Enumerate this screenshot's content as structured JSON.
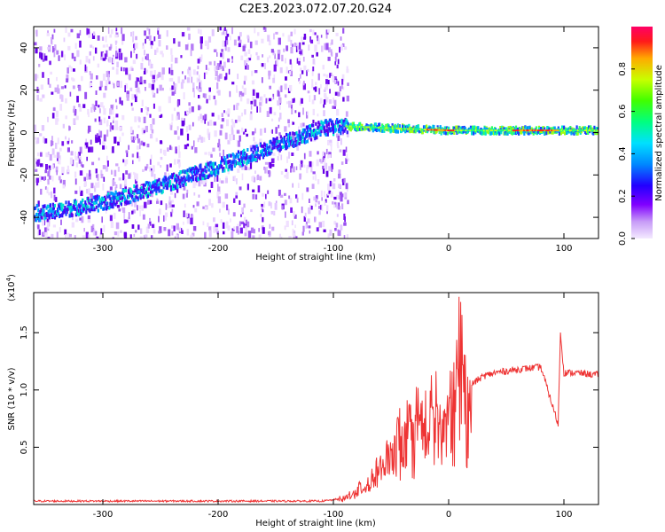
{
  "figure_title": "C2E3.2023.072.07.20.G24",
  "chart_data": [
    {
      "type": "heatmap",
      "title": "C2E3.2023.072.07.20.G24",
      "xlabel": "Height of straight line (km)",
      "ylabel": "Frequency (Hz)",
      "xlim": [
        -360,
        130
      ],
      "ylim": [
        -50,
        50
      ],
      "x_ticks": [
        -300,
        -200,
        -100,
        0,
        100
      ],
      "y_ticks": [
        -40,
        -20,
        0,
        20,
        40
      ],
      "colorbar": {
        "label": "Normalized spectral amplitude",
        "range": [
          0,
          1
        ],
        "ticks": [
          0.0,
          0.2,
          0.4,
          0.6,
          0.8
        ]
      },
      "ridge": {
        "description": "Doppler track rising from about -38 Hz at -350 km to about 3 Hz near -90 km, then flat near 1 Hz",
        "x": [
          -350,
          -300,
          -250,
          -200,
          -150,
          -110,
          -90,
          -50,
          0,
          50,
          100,
          130
        ],
        "y": [
          -38,
          -33,
          -25,
          -16,
          -6,
          2,
          3,
          2,
          1,
          1,
          1,
          1
        ]
      },
      "noise_region_x": [
        -360,
        -88
      ]
    },
    {
      "type": "line",
      "title": "",
      "xlabel": "Height of straight line (km)",
      "ylabel": "SNR (10 * v/v)",
      "multiplier_label": "(x10",
      "multiplier_exponent": "4",
      "multiplier_close": ")",
      "xlim": [
        -360,
        130
      ],
      "ylim": [
        0,
        1.85
      ],
      "x_ticks": [
        -300,
        -200,
        -100,
        0,
        100
      ],
      "y_ticks": [
        0.5,
        1.0,
        1.5
      ],
      "y_tick_labels": [
        "0.5",
        "1.0",
        "1.5"
      ],
      "series": [
        {
          "name": "SNR",
          "color": "#ee3333",
          "x": [
            -360,
            -300,
            -200,
            -110,
            -100,
            -90,
            -80,
            -70,
            -60,
            -50,
            -40,
            -30,
            -20,
            -10,
            -5,
            0,
            5,
            8,
            10,
            12,
            15,
            20,
            30,
            40,
            60,
            80,
            95,
            97,
            100,
            110,
            130
          ],
          "y": [
            0.03,
            0.03,
            0.03,
            0.03,
            0.04,
            0.06,
            0.12,
            0.2,
            0.3,
            0.45,
            0.6,
            0.7,
            0.75,
            0.8,
            0.65,
            0.85,
            0.9,
            1.1,
            1.85,
            1.15,
            1.0,
            1.05,
            1.12,
            1.15,
            1.18,
            1.2,
            0.7,
            1.5,
            1.15,
            1.15,
            1.13
          ]
        }
      ]
    }
  ],
  "colors": {
    "series": "#ee3333",
    "noise": "#9a3ff0",
    "background": "#ffffff"
  }
}
